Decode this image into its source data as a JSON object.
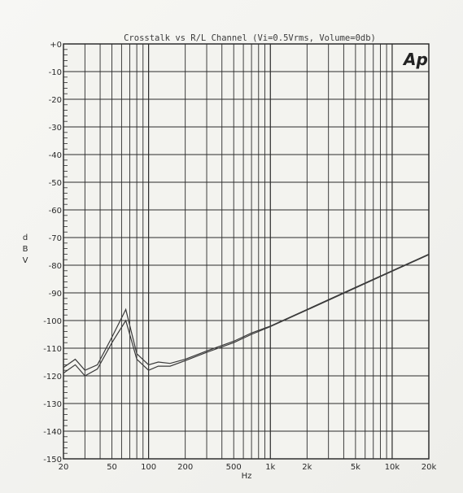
{
  "chart_data": {
    "type": "line",
    "title": "Crosstalk vs R/L Channel (Vi=0.5Vrms, Volume=0db)",
    "xlabel": "Hz",
    "ylabel": "d B V",
    "xscale": "log",
    "xlim": [
      20,
      20000
    ],
    "ylim": [
      -150,
      0
    ],
    "grid": true,
    "x_ticks": [
      20,
      50,
      100,
      200,
      500,
      1000,
      2000,
      5000,
      10000,
      20000
    ],
    "x_tick_labels": [
      "20",
      "50",
      "100",
      "200",
      "500",
      "1k",
      "2k",
      "5k",
      "10k",
      "20k"
    ],
    "y_ticks": [
      0,
      -10,
      -20,
      -30,
      -40,
      -50,
      -60,
      -70,
      -80,
      -90,
      -100,
      -110,
      -120,
      -130,
      -140,
      -150
    ],
    "y_tick_labels": [
      "+0",
      "-10",
      "-20",
      "-30",
      "-40",
      "-50",
      "-60",
      "-70",
      "-80",
      "-90",
      "-100",
      "-110",
      "-120",
      "-130",
      "-140",
      "-150"
    ],
    "logo": "Ap",
    "series": [
      {
        "color": "#3a3a3a",
        "x": [
          20,
          25,
          30,
          38,
          50,
          65,
          80,
          100,
          120,
          150,
          200,
          300,
          500,
          700,
          1000,
          2000,
          5000,
          10000,
          20000
        ],
        "y": [
          -117,
          -114,
          -118,
          -116,
          -106,
          -96,
          -112,
          -116,
          -115,
          -115.5,
          -114,
          -111,
          -107.5,
          -104.5,
          -102,
          -96,
          -88,
          -82,
          -76
        ]
      },
      {
        "color": "#3a3a3a",
        "x": [
          20,
          25,
          30,
          38,
          50,
          65,
          80,
          100,
          120,
          150,
          200,
          300,
          500,
          700,
          1000,
          2000,
          5000,
          10000,
          20000
        ],
        "y": [
          -119,
          -116,
          -120,
          -117.5,
          -108,
          -100,
          -114,
          -118,
          -116.5,
          -116.5,
          -114.5,
          -111.5,
          -108,
          -105,
          -102.2,
          -96.2,
          -88.2,
          -82.2,
          -76.2
        ]
      }
    ]
  }
}
